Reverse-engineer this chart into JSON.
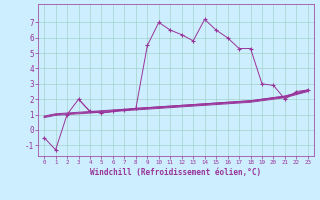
{
  "background_color": "#cceeff",
  "grid_color": "#99ccbb",
  "line_color": "#993399",
  "x_values": [
    0,
    1,
    2,
    3,
    4,
    5,
    6,
    7,
    8,
    9,
    10,
    11,
    12,
    13,
    14,
    15,
    16,
    17,
    18,
    19,
    20,
    21,
    22,
    23
  ],
  "series_main": [
    -0.5,
    -1.3,
    1.0,
    2.0,
    1.2,
    1.1,
    1.2,
    1.3,
    1.4,
    5.5,
    7.0,
    6.5,
    6.2,
    5.8,
    7.2,
    6.5,
    6.0,
    5.3,
    5.3,
    3.0,
    2.9,
    2.0,
    2.5,
    2.6
  ],
  "series_flat1": [
    0.9,
    1.05,
    1.1,
    1.15,
    1.2,
    1.25,
    1.3,
    1.35,
    1.4,
    1.45,
    1.5,
    1.55,
    1.6,
    1.65,
    1.7,
    1.75,
    1.8,
    1.85,
    1.9,
    2.0,
    2.1,
    2.2,
    2.4,
    2.6
  ],
  "series_flat2": [
    0.85,
    1.0,
    1.05,
    1.1,
    1.15,
    1.2,
    1.25,
    1.3,
    1.35,
    1.4,
    1.45,
    1.5,
    1.55,
    1.6,
    1.65,
    1.7,
    1.75,
    1.8,
    1.85,
    1.95,
    2.05,
    2.15,
    2.35,
    2.55
  ],
  "series_flat3": [
    0.8,
    0.95,
    1.0,
    1.05,
    1.1,
    1.15,
    1.2,
    1.25,
    1.3,
    1.35,
    1.4,
    1.45,
    1.5,
    1.55,
    1.6,
    1.65,
    1.7,
    1.75,
    1.8,
    1.9,
    2.0,
    2.1,
    2.3,
    2.5
  ],
  "series_partial_main": [
    null,
    null,
    null,
    2.0,
    1.2,
    1.1,
    1.2,
    1.3,
    1.4,
    1.45,
    1.5,
    1.55,
    1.6,
    1.65,
    1.7,
    1.75,
    1.8,
    1.85,
    1.9,
    2.0,
    2.1,
    2.2,
    2.4,
    2.6
  ],
  "ylim": [
    -1.7,
    8.2
  ],
  "yticks": [
    -1,
    0,
    1,
    2,
    3,
    4,
    5,
    6,
    7
  ],
  "xticks": [
    0,
    1,
    2,
    3,
    4,
    5,
    6,
    7,
    8,
    9,
    10,
    11,
    12,
    13,
    14,
    15,
    16,
    17,
    18,
    19,
    20,
    21,
    22,
    23
  ],
  "xlabel": "Windchill (Refroidissement éolien,°C)"
}
